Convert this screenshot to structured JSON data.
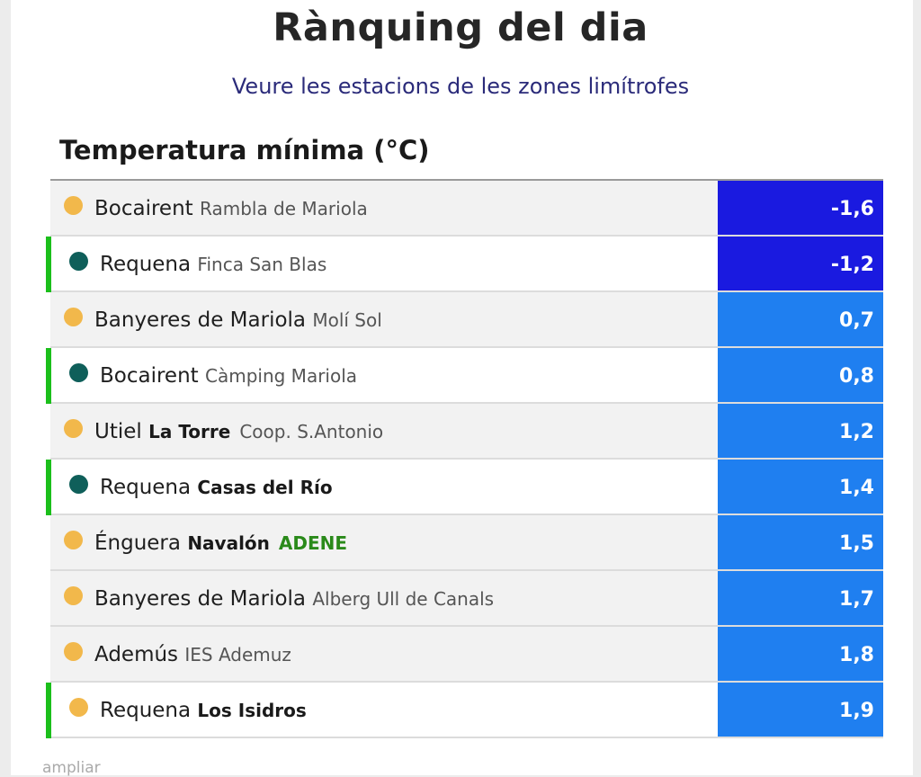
{
  "page": {
    "title": "Rànquing del dia",
    "link_text": "Veure les estacions de les zones limítrofes",
    "section_title": "Temperatura mínima (°C)",
    "footer_link": "ampliar"
  },
  "colors": {
    "value_dark": "#1a1ae0",
    "value_light": "#1f7ff0",
    "dot_yellow": "#f2b84b",
    "dot_teal": "#0f5f5a",
    "flag_green": "#1bbf1b"
  },
  "rows": [
    {
      "place": "Bocairent",
      "detail": "Rambla de Mariola",
      "detail_bold": false,
      "extra": "",
      "value": "-1,6",
      "dot": "yellow",
      "flag": false
    },
    {
      "place": "Requena",
      "detail": "Finca San Blas",
      "detail_bold": false,
      "extra": "",
      "value": "-1,2",
      "dot": "teal",
      "flag": true
    },
    {
      "place": "Banyeres de Mariola",
      "detail": "Molí Sol",
      "detail_bold": false,
      "extra": "",
      "value": "0,7",
      "dot": "yellow",
      "flag": false
    },
    {
      "place": "Bocairent",
      "detail": "Càmping Mariola",
      "detail_bold": false,
      "extra": "",
      "value": "0,8",
      "dot": "teal",
      "flag": true
    },
    {
      "place": "Utiel",
      "detail": "La Torre",
      "detail_bold": true,
      "extra": "",
      "extra_plain": "Coop. S.Antonio",
      "value": "1,2",
      "dot": "yellow",
      "flag": false
    },
    {
      "place": "Requena",
      "detail": "Casas del Río",
      "detail_bold": true,
      "extra": "",
      "value": "1,4",
      "dot": "teal",
      "flag": true
    },
    {
      "place": "Énguera",
      "detail": "Navalón",
      "detail_bold": true,
      "extra": "ADENE",
      "value": "1,5",
      "dot": "yellow",
      "flag": false
    },
    {
      "place": "Banyeres de Mariola",
      "detail": "Alberg Ull de Canals",
      "detail_bold": false,
      "extra": "",
      "value": "1,7",
      "dot": "yellow",
      "flag": false
    },
    {
      "place": "Ademús",
      "detail": "IES Ademuz",
      "detail_bold": false,
      "extra": "",
      "value": "1,8",
      "dot": "yellow",
      "flag": false
    },
    {
      "place": "Requena",
      "detail": "Los Isidros",
      "detail_bold": true,
      "extra": "",
      "value": "1,9",
      "dot": "yellow",
      "flag": true
    }
  ]
}
